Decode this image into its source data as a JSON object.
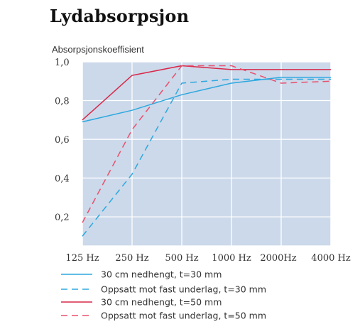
{
  "chart_data": {
    "type": "line",
    "title": "Lydabsorpsjon",
    "ylabel": "Absorpsjonskoeffisient",
    "xlabel": "",
    "categories": [
      "125 Hz",
      "250 Hz",
      "500 Hz",
      "1000 Hz",
      "2000Hz",
      "4000 Hz"
    ],
    "yticks": [
      "0,2",
      "0,4",
      "0,6",
      "0,8",
      "1,0"
    ],
    "ylim": [
      0.05,
      1.0
    ],
    "grid": true,
    "background": "#ccd9ea",
    "series": [
      {
        "name": "30 cm nedhengt, t=30 mm",
        "color": "#2ea8df",
        "style": "solid",
        "values": [
          0.69,
          0.75,
          0.83,
          0.89,
          0.92,
          0.92
        ]
      },
      {
        "name": "Oppsatt mot fast underlag, t=30 mm",
        "color": "#2ea8df",
        "style": "dashed",
        "values": [
          0.1,
          0.42,
          0.89,
          0.91,
          0.91,
          0.91
        ]
      },
      {
        "name": "30 cm nedhengt, t=50 mm",
        "color": "#d9284a",
        "style": "solid",
        "values": [
          0.7,
          0.93,
          0.98,
          0.96,
          0.96,
          0.96
        ]
      },
      {
        "name": "Oppsatt mot fast underlag, t=50 mm",
        "color": "#e8506e",
        "style": "dashed",
        "values": [
          0.17,
          0.65,
          0.98,
          0.98,
          0.89,
          0.9
        ]
      }
    ],
    "legend_position": "bottom-left"
  }
}
